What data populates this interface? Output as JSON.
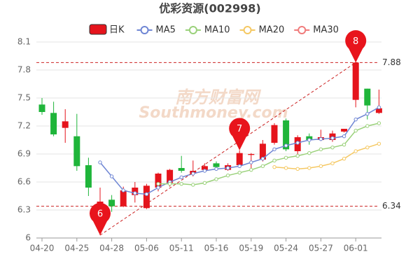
{
  "chart_data": {
    "type": "candlestick",
    "title": "优彩资源(002998)",
    "watermark": [
      "南方财富网",
      "Southmoney.com"
    ],
    "categories": [
      "04-20",
      null,
      null,
      "04-25",
      null,
      null,
      "04-28",
      null,
      null,
      "05-06",
      null,
      null,
      "05-11",
      null,
      null,
      "05-16",
      null,
      null,
      "05-19",
      null,
      null,
      "05-24",
      null,
      null,
      "05-27",
      null,
      null,
      "06-01",
      null,
      null
    ],
    "candles": {
      "name": "日K",
      "up_color": "#e5141c",
      "down_color": "#1fb53a",
      "open": [
        7.43,
        7.34,
        7.18,
        7.09,
        6.78,
        6.31,
        6.41,
        6.34,
        6.46,
        6.32,
        6.54,
        6.59,
        6.75,
        6.69,
        6.73,
        6.8,
        6.73,
        6.78,
        6.89,
        6.84,
        7.02,
        7.26,
        6.93,
        7.09,
        7.05,
        7.05,
        7.14,
        7.48,
        7.6,
        7.34
      ],
      "high": [
        7.5,
        7.46,
        7.38,
        7.33,
        6.86,
        6.54,
        6.46,
        6.55,
        6.6,
        6.58,
        6.7,
        6.74,
        6.88,
        6.83,
        6.8,
        6.82,
        6.8,
        6.94,
        6.91,
        7.05,
        7.23,
        7.28,
        7.1,
        7.12,
        7.16,
        7.15,
        7.17,
        7.88,
        7.6,
        7.59
      ],
      "low": [
        7.32,
        7.09,
        7.02,
        6.72,
        6.45,
        6.03,
        6.28,
        6.33,
        6.38,
        6.31,
        6.5,
        6.55,
        6.7,
        6.66,
        6.72,
        6.74,
        6.72,
        6.76,
        6.72,
        6.82,
        7.0,
        6.93,
        6.9,
        7.0,
        7.04,
        7.03,
        7.13,
        7.4,
        7.27,
        7.33
      ],
      "close": [
        7.35,
        7.11,
        7.25,
        6.77,
        6.54,
        6.39,
        6.34,
        6.51,
        6.54,
        6.56,
        6.69,
        6.73,
        6.72,
        6.72,
        6.77,
        6.76,
        6.78,
        6.91,
        6.9,
        7.01,
        7.21,
        6.95,
        7.08,
        7.05,
        7.08,
        7.12,
        7.17,
        7.88,
        7.42,
        7.39
      ]
    },
    "series": [
      {
        "name": "MA5",
        "color": "#6f86d4",
        "values": [
          null,
          null,
          null,
          null,
          null,
          6.81,
          6.66,
          6.51,
          6.48,
          6.47,
          6.54,
          6.6,
          6.65,
          6.69,
          6.72,
          6.74,
          6.75,
          6.77,
          6.81,
          6.85,
          6.95,
          6.99,
          7.02,
          7.05,
          7.06,
          7.07,
          7.09,
          7.27,
          7.33,
          7.4
        ]
      },
      {
        "name": "MA10",
        "color": "#9ad17a",
        "values": [
          null,
          null,
          null,
          null,
          null,
          null,
          null,
          null,
          null,
          null,
          6.58,
          6.58,
          6.58,
          6.57,
          6.59,
          6.63,
          6.67,
          6.7,
          6.73,
          6.77,
          6.83,
          6.86,
          6.88,
          6.91,
          6.95,
          6.97,
          7.0,
          7.15,
          7.2,
          7.23
        ]
      },
      {
        "name": "MA20",
        "color": "#f5c862",
        "values": [
          null,
          null,
          null,
          null,
          null,
          null,
          null,
          null,
          null,
          null,
          null,
          null,
          null,
          null,
          null,
          null,
          null,
          null,
          null,
          null,
          6.76,
          6.75,
          6.74,
          6.75,
          6.77,
          6.8,
          6.85,
          6.93,
          6.97,
          7.01
        ]
      },
      {
        "name": "MA30",
        "color": "#f07b7b",
        "values": [
          null,
          null,
          null,
          null,
          null,
          null,
          null,
          null,
          null,
          null,
          null,
          null,
          null,
          null,
          null,
          null,
          null,
          null,
          null,
          null,
          null,
          null,
          null,
          null,
          null,
          null,
          null,
          null,
          null,
          null
        ]
      }
    ],
    "pins": [
      {
        "label": "6",
        "value": 6.03,
        "color": "#e8141c"
      },
      {
        "label": "7",
        "value": 6.94,
        "color": "#e8141c"
      },
      {
        "label": "8",
        "value": 7.88,
        "color": "#e8141c"
      }
    ],
    "hlines": [
      7.88,
      6.34
    ],
    "ylim": [
      6,
      8.1
    ],
    "yticks": [
      6,
      6.3,
      6.6,
      6.9,
      7.2,
      7.5,
      7.8,
      8.1
    ],
    "grid": true
  }
}
